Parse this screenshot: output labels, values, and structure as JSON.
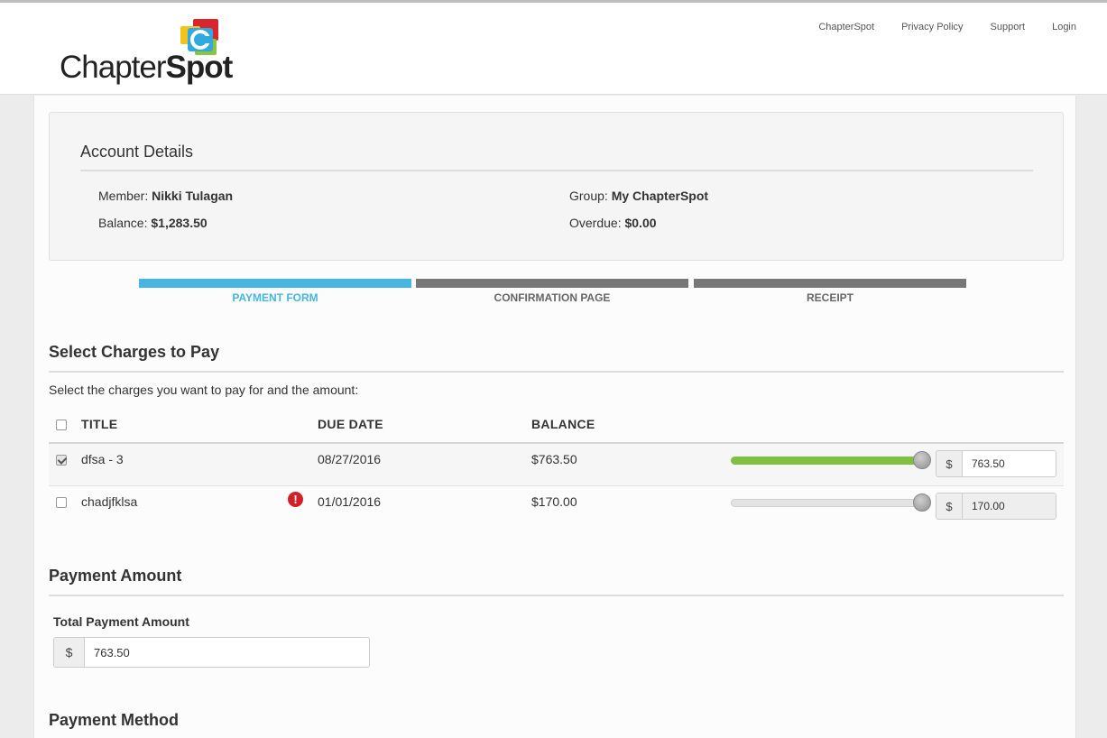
{
  "nav": {
    "items": [
      "ChapterSpot",
      "Privacy Policy",
      "Support",
      "Login"
    ]
  },
  "logo": {
    "text_light": "Chapter",
    "text_bold": "Spot",
    "mark_letter": "C"
  },
  "account": {
    "title": "Account Details",
    "member_label": "Member:",
    "member_value": "Nikki Tulagan",
    "group_label": "Group:",
    "group_value": "My ChapterSpot",
    "balance_label": "Balance:",
    "balance_value": "$1,283.50",
    "overdue_label": "Overdue:",
    "overdue_value": "$0.00"
  },
  "steps": [
    {
      "label": "PAYMENT FORM",
      "active": true
    },
    {
      "label": "CONFIRMATION PAGE",
      "active": false
    },
    {
      "label": "RECEIPT",
      "active": false
    }
  ],
  "charges": {
    "title": "Select Charges to Pay",
    "instructions": "Select the charges you want to pay for and the amount:",
    "columns": {
      "title": "TITLE",
      "due_date": "DUE DATE",
      "balance": "BALANCE"
    },
    "rows": [
      {
        "title": "dfsa - 3",
        "due_date": "08/27/2016",
        "balance": "$763.50",
        "amount": "763.50",
        "checked": true,
        "overdue_alert": false,
        "slider_fraction": 1.0,
        "currency": "$"
      },
      {
        "title": "chadjfklsa",
        "due_date": "01/01/2016",
        "balance": "$170.00",
        "amount": "170.00",
        "checked": false,
        "overdue_alert": true,
        "slider_fraction": 1.0,
        "currency": "$"
      }
    ]
  },
  "payment_amount": {
    "title": "Payment Amount",
    "total_label": "Total Payment Amount",
    "currency": "$",
    "value": "763.50"
  },
  "payment_method": {
    "title": "Payment Method"
  },
  "colors": {
    "accent_blue": "#45b5e4",
    "inactive_step": "#777777",
    "slider_green": "#7fc043",
    "alert_red": "#d0202a",
    "logo_red": "#d9262c",
    "logo_yellow": "#f2c31b",
    "logo_green": "#8bc43f",
    "logo_blue": "#2fa9e0"
  }
}
